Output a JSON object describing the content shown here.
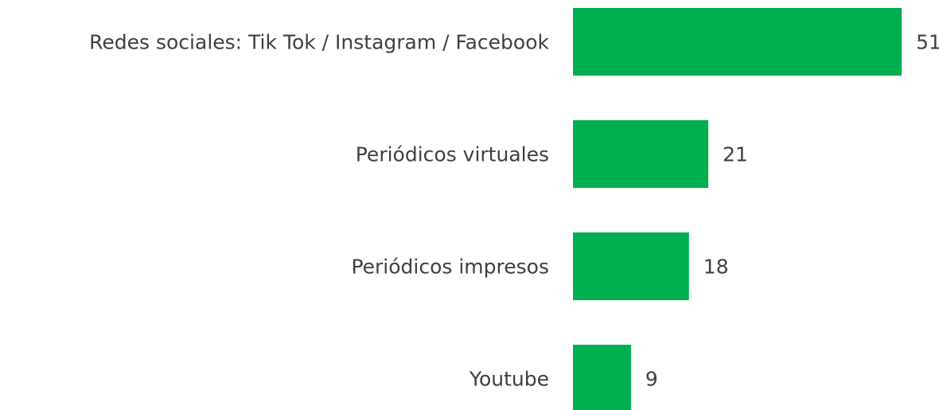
{
  "chart_data": {
    "type": "bar",
    "orientation": "horizontal",
    "categories": [
      "Redes sociales: Tik Tok / Instagram / Facebook",
      "Periódicos virtuales",
      "Periódicos impresos",
      "Youtube"
    ],
    "values": [
      51,
      21,
      18,
      9
    ],
    "color": "#00b050"
  }
}
